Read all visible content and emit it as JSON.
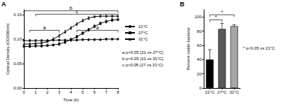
{
  "chart_data": [
    {
      "type": "line",
      "title": "A",
      "xlabel": "Time (h)",
      "ylabel": "Optical Density (OD600nm)",
      "x": [
        0,
        0.5,
        1,
        1.5,
        2,
        2.5,
        3,
        3.5,
        4,
        4.5,
        5,
        5.5,
        6,
        6.5,
        7,
        7.5,
        8
      ],
      "xlim": [
        0,
        8
      ],
      "xticks": [
        0,
        1,
        2,
        3,
        4,
        5,
        6,
        7,
        8
      ],
      "ylim": [
        0,
        0.16
      ],
      "yticks": [
        {
          "value": 0,
          "label": "0.00"
        },
        {
          "value": 0.05,
          "label": "0.05"
        },
        {
          "value": 0.1,
          "label": "0.10"
        },
        {
          "value": 0.15,
          "label": "0.15"
        }
      ],
      "grid": false,
      "legend": "right",
      "series": [
        {
          "name": "21°C",
          "color": "#000000",
          "marker": "circle",
          "values": [
            0.097,
            0.097,
            0.097,
            0.097,
            0.097,
            0.098,
            0.098,
            0.098,
            0.098,
            0.098,
            0.099,
            0.099,
            0.099,
            0.099,
            0.1,
            0.1,
            0.1
          ],
          "errors": [
            0.002,
            0.002,
            0.002,
            0.002,
            0.002,
            0.002,
            0.002,
            0.002,
            0.002,
            0.002,
            0.002,
            0.002,
            0.002,
            0.002,
            0.002,
            0.002,
            0.002
          ]
        },
        {
          "name": "27°C",
          "color": "#000000",
          "marker": "square",
          "values": [
            0.085,
            0.085,
            0.086,
            0.086,
            0.087,
            0.088,
            0.09,
            0.094,
            0.099,
            0.105,
            0.112,
            0.119,
            0.126,
            0.132,
            0.136,
            0.139,
            0.14
          ],
          "errors": [
            0.002,
            0.002,
            0.002,
            0.002,
            0.002,
            0.002,
            0.003,
            0.003,
            0.003,
            0.003,
            0.003,
            0.003,
            0.003,
            0.003,
            0.003,
            0.003,
            0.003
          ]
        },
        {
          "name": "31°C",
          "color": "#000000",
          "marker": "triangle",
          "values": [
            0.09,
            0.09,
            0.091,
            0.092,
            0.095,
            0.1,
            0.107,
            0.115,
            0.123,
            0.131,
            0.138,
            0.143,
            0.146,
            0.147,
            0.147,
            0.147,
            0.147
          ],
          "errors": [
            0.002,
            0.002,
            0.002,
            0.002,
            0.002,
            0.003,
            0.003,
            0.003,
            0.003,
            0.003,
            0.003,
            0.003,
            0.002,
            0.002,
            0.002,
            0.002,
            0.002
          ]
        }
      ],
      "brackets": [
        {
          "from": 0,
          "to": 8,
          "y": 0.158,
          "label": "b"
        },
        {
          "from": 1,
          "to": 8,
          "y": 0.151,
          "label": "c"
        },
        {
          "from": 0.5,
          "to": 3,
          "y": 0.118,
          "label": "a"
        },
        {
          "from": 4.5,
          "to": 8,
          "y": 0.118,
          "label": "a"
        }
      ],
      "annotations": [
        "a p<0.05 (21 vs 27°C)",
        "b p<0.05 (21 vs 31°C)",
        "c p<0.05 (27 vs 31°C)"
      ]
    },
    {
      "type": "bar",
      "title": "B",
      "ylabel": "Percent viable bacteria",
      "categories": [
        "21°C",
        "27°C",
        "31°C"
      ],
      "values": [
        40,
        83,
        87
      ],
      "errors": [
        14,
        8,
        2
      ],
      "colors": [
        "#000000",
        "#595959",
        "#a6a6a6"
      ],
      "ylim": [
        0,
        110
      ],
      "yticks": [
        0,
        20,
        40,
        60,
        80,
        100
      ],
      "grid": false,
      "brackets": [
        {
          "from": "21°C",
          "to": "27°C",
          "y": 96,
          "label": "*"
        },
        {
          "from": "21°C",
          "to": "31°C",
          "y": 103,
          "label": "*"
        }
      ],
      "annotations": [
        "* p<0.05 vs 21°C"
      ]
    }
  ]
}
